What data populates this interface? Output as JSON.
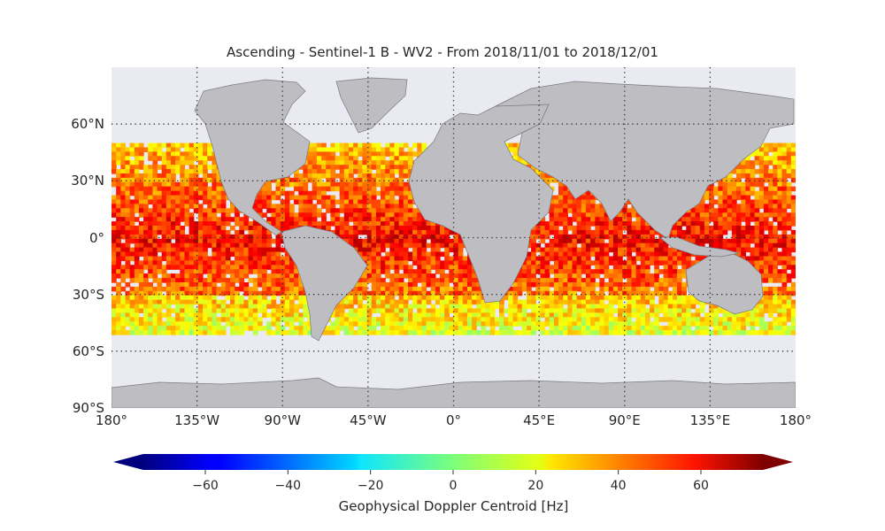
{
  "title": "Ascending - Sentinel-1 B - WV2 - From 2018/11/01 to 2018/12/01",
  "map": {
    "background_color": "#eaeaf2",
    "land_color": "#bdbdc2",
    "coast_color": "#7a7a80",
    "lat_ticks": [
      {
        "value": 60,
        "label": "60°N"
      },
      {
        "value": 30,
        "label": "30°N"
      },
      {
        "value": 0,
        "label": "0°"
      },
      {
        "value": -30,
        "label": "30°S"
      },
      {
        "value": -60,
        "label": "60°S"
      },
      {
        "value": -90,
        "label": "90°S"
      }
    ],
    "lon_ticks": [
      {
        "value": -180,
        "label": "180°"
      },
      {
        "value": -135,
        "label": "135°W"
      },
      {
        "value": -90,
        "label": "90°W"
      },
      {
        "value": -45,
        "label": "45°W"
      },
      {
        "value": 0,
        "label": "0°"
      },
      {
        "value": 45,
        "label": "45°E"
      },
      {
        "value": 90,
        "label": "90°E"
      },
      {
        "value": 135,
        "label": "135°E"
      },
      {
        "value": 180,
        "label": "180°"
      }
    ],
    "lat_range": [
      -90,
      90
    ],
    "lon_range": [
      -180,
      180
    ],
    "data_lat_range": [
      -50,
      50
    ],
    "gridlines": "dotted"
  },
  "colorbar": {
    "label": "Geophysical Doppler Centroid [Hz]",
    "min": -75,
    "max": 75,
    "ticks": [
      {
        "value": -60,
        "label": "−60"
      },
      {
        "value": -40,
        "label": "−40"
      },
      {
        "value": -20,
        "label": "−20"
      },
      {
        "value": 0,
        "label": "0"
      },
      {
        "value": 20,
        "label": "20"
      },
      {
        "value": 40,
        "label": "40"
      },
      {
        "value": 60,
        "label": "60"
      }
    ],
    "colormap": "jet",
    "extend": "both"
  }
}
